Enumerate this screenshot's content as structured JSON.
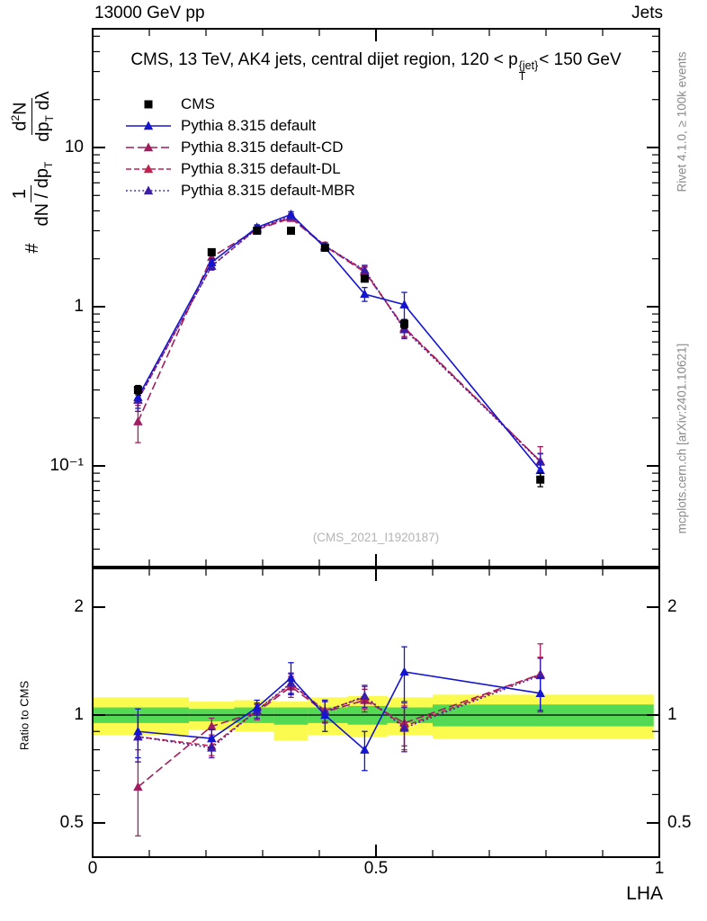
{
  "header": {
    "left": "13000 GeV pp",
    "right": "Jets"
  },
  "title": {
    "pre": "CMS, 13 TeV, AK4 jets, central dijet region, 120 < p",
    "sup": "{jet}",
    "sub": "T",
    "post": "< 150 GeV"
  },
  "ylabel": {
    "hash": "#",
    "f1num": "1",
    "f1den": [
      "dN / dp",
      "T"
    ],
    "f2num": [
      "d",
      "2",
      "N"
    ],
    "f2den": [
      "dp",
      "T",
      " dλ"
    ]
  },
  "ratio_ylabel": "Ratio to CMS",
  "xlabel": "LHA",
  "watermark": "(CMS_2021_I1920187)",
  "right_labels": {
    "top": "Rivet 4.1.0, ≥ 100k events",
    "bottom": "mcplots.cern.ch [arXiv:2401.10621]"
  },
  "axis_labels": {
    "main_y": [
      "10",
      "1",
      "10⁻¹"
    ],
    "ratio_y": [
      "2",
      "1",
      "0.5"
    ],
    "x": [
      "0",
      "0.5",
      "1"
    ]
  },
  "chart_data": {
    "type": "line",
    "title": "CMS, 13 TeV, AK4 jets, central dijet region, 120 < pT{jet} < 150 GeV",
    "xlabel": "LHA",
    "ylabel": "# 1/(dN/dpT) d2N/(dpT dLambda)",
    "xlim": [
      0,
      1
    ],
    "x": [
      0.08,
      0.21,
      0.29,
      0.35,
      0.41,
      0.48,
      0.55,
      0.79
    ],
    "main": {
      "yscale": "log",
      "ylim": [
        0.023,
        55
      ],
      "yticks": [
        10,
        1,
        0.1
      ],
      "series": [
        {
          "name": "CMS",
          "color": "#000000",
          "marker": "square",
          "line": "none",
          "values": [
            0.3,
            2.2,
            3.0,
            3.0,
            2.35,
            1.5,
            0.78,
            0.082
          ],
          "yerr": [
            0.02,
            0.08,
            0.1,
            0.1,
            0.08,
            0.06,
            0.05,
            0.008
          ]
        },
        {
          "name": "Pythia 8.315 default",
          "color": "#1515cf",
          "marker": "triangle",
          "line": "solid",
          "values": [
            0.27,
            1.9,
            3.15,
            3.8,
            2.35,
            1.2,
            1.03,
            0.094
          ],
          "yerr": [
            0.04,
            0.1,
            0.12,
            0.15,
            0.12,
            0.12,
            0.2,
            0.012
          ]
        },
        {
          "name": "Pythia 8.315 default-CD",
          "color": "#a01d60",
          "marker": "triangle",
          "line": "dash",
          "values": [
            0.19,
            2.05,
            3.05,
            3.6,
            2.4,
            1.65,
            0.74,
            0.107
          ],
          "yerr": [
            0.05,
            0.1,
            0.12,
            0.15,
            0.12,
            0.12,
            0.09,
            0.025
          ]
        },
        {
          "name": "Pythia 8.315 default-DL",
          "color": "#c22150",
          "marker": "triangle",
          "line": "dash2",
          "values": [
            0.26,
            1.8,
            3.1,
            3.65,
            2.42,
            1.68,
            0.73,
            0.107
          ],
          "yerr": [
            0.04,
            0.1,
            0.12,
            0.15,
            0.12,
            0.12,
            0.09,
            0.013
          ]
        },
        {
          "name": "Pythia 8.315 default-MBR",
          "color": "#3c1da8",
          "marker": "triangle",
          "line": "dot",
          "values": [
            0.26,
            1.8,
            3.1,
            3.7,
            2.4,
            1.7,
            0.72,
            0.106
          ],
          "yerr": [
            0.04,
            0.1,
            0.12,
            0.15,
            0.12,
            0.12,
            0.09,
            0.013
          ]
        }
      ]
    },
    "ratio": {
      "yscale": "log",
      "ylim": [
        0.4,
        2.58
      ],
      "yticks": [
        2,
        1,
        0.5
      ],
      "reference": "CMS",
      "series": [
        {
          "name": "Pythia 8.315 default",
          "color": "#1515cf",
          "marker": "triangle",
          "line": "solid",
          "values": [
            0.9,
            0.86,
            1.05,
            1.27,
            1.0,
            0.8,
            1.32,
            1.15
          ],
          "yerr": [
            0.14,
            0.05,
            0.05,
            0.13,
            0.1,
            0.1,
            0.23,
            0.12
          ]
        },
        {
          "name": "Pythia 8.315 default-CD",
          "color": "#a01d60",
          "marker": "triangle",
          "line": "dash",
          "values": [
            0.63,
            0.93,
            1.02,
            1.2,
            1.02,
            1.1,
            0.95,
            1.3
          ],
          "yerr": [
            0.17,
            0.05,
            0.05,
            0.08,
            0.07,
            0.08,
            0.13,
            0.28
          ]
        },
        {
          "name": "Pythia 8.315 default-DL",
          "color": "#c22150",
          "marker": "triangle",
          "line": "dash2",
          "values": [
            0.87,
            0.82,
            1.03,
            1.22,
            1.03,
            1.12,
            0.93,
            1.3
          ],
          "yerr": [
            0.13,
            0.05,
            0.05,
            0.08,
            0.07,
            0.08,
            0.13,
            0.15
          ]
        },
        {
          "name": "Pythia 8.315 default-MBR",
          "color": "#3c1da8",
          "marker": "triangle",
          "line": "dot",
          "values": [
            0.87,
            0.81,
            1.03,
            1.23,
            1.02,
            1.13,
            0.92,
            1.29
          ],
          "yerr": [
            0.13,
            0.05,
            0.05,
            0.08,
            0.07,
            0.08,
            0.13,
            0.15
          ]
        }
      ],
      "bands": {
        "colors": {
          "yellow": "#fbfb4f",
          "green": "#54d954"
        },
        "yellow": [
          {
            "x0": 0.0,
            "x1": 0.17,
            "lo": 0.88,
            "hi": 1.12
          },
          {
            "x0": 0.17,
            "x1": 0.25,
            "lo": 0.91,
            "hi": 1.09
          },
          {
            "x0": 0.25,
            "x1": 0.32,
            "lo": 0.9,
            "hi": 1.1
          },
          {
            "x0": 0.32,
            "x1": 0.38,
            "lo": 0.85,
            "hi": 1.09
          },
          {
            "x0": 0.38,
            "x1": 0.45,
            "lo": 0.88,
            "hi": 1.12
          },
          {
            "x0": 0.45,
            "x1": 0.52,
            "lo": 0.87,
            "hi": 1.13
          },
          {
            "x0": 0.52,
            "x1": 0.6,
            "lo": 0.88,
            "hi": 1.12
          },
          {
            "x0": 0.6,
            "x1": 0.99,
            "lo": 0.86,
            "hi": 1.14
          }
        ],
        "green": [
          {
            "x0": 0.0,
            "x1": 0.17,
            "lo": 0.95,
            "hi": 1.05
          },
          {
            "x0": 0.17,
            "x1": 0.25,
            "lo": 0.96,
            "hi": 1.04
          },
          {
            "x0": 0.25,
            "x1": 0.32,
            "lo": 0.95,
            "hi": 1.05
          },
          {
            "x0": 0.32,
            "x1": 0.38,
            "lo": 0.94,
            "hi": 1.05
          },
          {
            "x0": 0.38,
            "x1": 0.45,
            "lo": 0.95,
            "hi": 1.05
          },
          {
            "x0": 0.45,
            "x1": 0.52,
            "lo": 0.94,
            "hi": 1.06
          },
          {
            "x0": 0.52,
            "x1": 0.6,
            "lo": 0.95,
            "hi": 1.05
          },
          {
            "x0": 0.6,
            "x1": 0.99,
            "lo": 0.93,
            "hi": 1.07
          }
        ]
      }
    },
    "watermark": "(CMS_2021_I1920187)"
  }
}
